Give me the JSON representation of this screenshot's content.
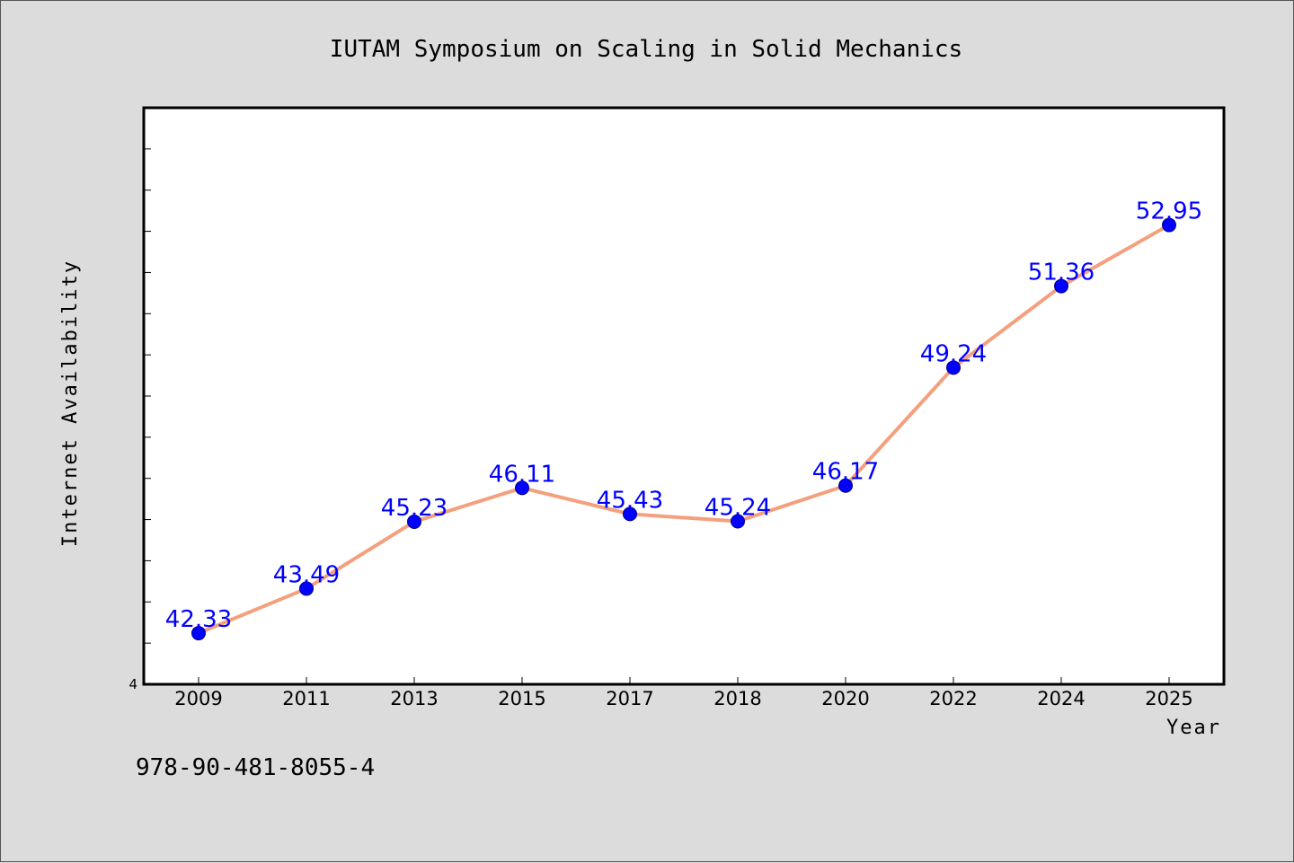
{
  "chart_data": {
    "type": "line",
    "title": "IUTAM Symposium on Scaling in Solid Mechanics",
    "xlabel": "Year",
    "ylabel": "Internet Availability",
    "categories": [
      "2009",
      "2011",
      "2013",
      "2015",
      "2017",
      "2018",
      "2020",
      "2022",
      "2024",
      "2025"
    ],
    "series": [
      {
        "values": [
          42.33,
          43.49,
          45.23,
          46.11,
          45.43,
          45.24,
          46.17,
          49.24,
          51.36,
          52.95
        ],
        "labels": [
          "42.33",
          "43.49",
          "45.23",
          "46.11",
          "45.43",
          "45.24",
          "46.17",
          "49.24",
          "51.36",
          "52.95"
        ]
      }
    ],
    "ylim": [
      41,
      56
    ],
    "yticks_labeled": [
      {
        "value": 41,
        "label": "4"
      }
    ],
    "ytick_count": 14,
    "grid": false,
    "line_color": "#f4a07e",
    "marker_color": "#0000ff",
    "label_color": "#0000ff",
    "background_color": "#dcdcdc",
    "plot_background": "#ffffff"
  },
  "footer": {
    "isbn": "978-90-481-8055-4"
  }
}
